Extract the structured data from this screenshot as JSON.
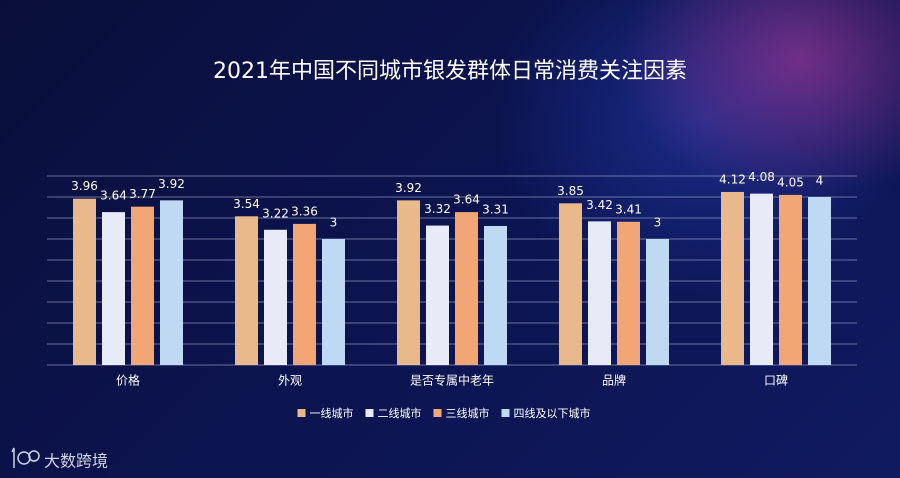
{
  "chart_data": {
    "type": "bar",
    "title": "2021年中国不同城市银发群体日常消费关注因素",
    "categories": [
      "价格",
      "外观",
      "是否专属中老年",
      "品牌",
      "口碑"
    ],
    "series": [
      {
        "name": "一线城市",
        "color": "#e9b98b",
        "values": [
          3.96,
          3.54,
          3.92,
          3.85,
          4.12
        ]
      },
      {
        "name": "二线城市",
        "color": "#e8eaf8",
        "values": [
          3.64,
          3.22,
          3.32,
          3.42,
          4.08
        ]
      },
      {
        "name": "三线城市",
        "color": "#f2a575",
        "values": [
          3.77,
          3.36,
          3.64,
          3.41,
          4.05
        ]
      },
      {
        "name": "四线及以下城市",
        "color": "#bed9f1",
        "values": [
          3.92,
          3,
          3.31,
          3,
          4
        ]
      }
    ],
    "ylim": [
      0,
      4.5
    ],
    "yticks": [
      0,
      0.5,
      1,
      1.5,
      2,
      2.5,
      3,
      3.5,
      4,
      4.5
    ],
    "grid": true
  },
  "logo": "大数跨境"
}
